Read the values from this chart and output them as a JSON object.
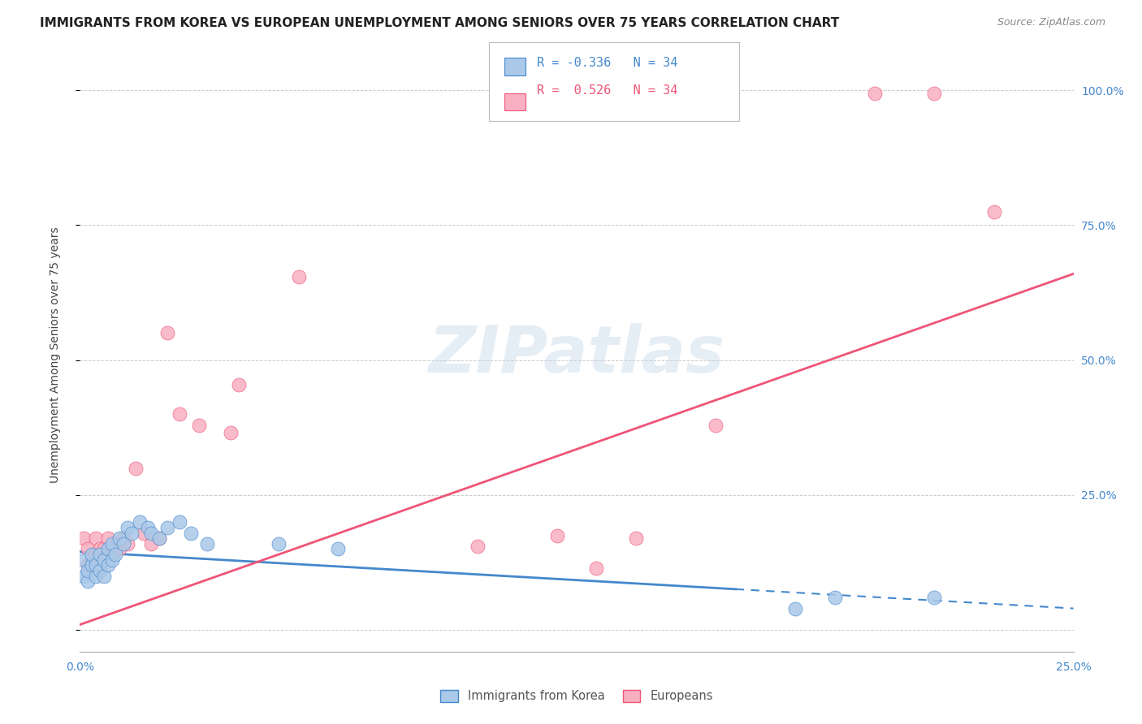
{
  "title": "IMMIGRANTS FROM KOREA VS EUROPEAN UNEMPLOYMENT AMONG SENIORS OVER 75 YEARS CORRELATION CHART",
  "source": "Source: ZipAtlas.com",
  "ylabel": "Unemployment Among Seniors over 75 years",
  "legend_label1": "Immigrants from Korea",
  "legend_label2": "Europeans",
  "R_korea": -0.336,
  "N_korea": 34,
  "R_europe": 0.526,
  "N_europe": 34,
  "color_korea": "#aac8e8",
  "color_europe": "#f8b0c0",
  "color_korea_line": "#4488cc",
  "color_europe_line": "#ee5577",
  "watermark_text": "ZIPatlas",
  "korea_x": [
    0.001,
    0.001,
    0.002,
    0.002,
    0.003,
    0.003,
    0.004,
    0.004,
    0.005,
    0.005,
    0.006,
    0.006,
    0.007,
    0.007,
    0.008,
    0.008,
    0.009,
    0.01,
    0.011,
    0.012,
    0.013,
    0.015,
    0.017,
    0.018,
    0.02,
    0.022,
    0.025,
    0.028,
    0.032,
    0.05,
    0.065,
    0.18,
    0.19,
    0.215
  ],
  "korea_y": [
    0.1,
    0.13,
    0.09,
    0.11,
    0.12,
    0.14,
    0.1,
    0.12,
    0.11,
    0.14,
    0.1,
    0.13,
    0.12,
    0.15,
    0.13,
    0.16,
    0.14,
    0.17,
    0.16,
    0.19,
    0.18,
    0.2,
    0.19,
    0.18,
    0.17,
    0.19,
    0.2,
    0.18,
    0.16,
    0.16,
    0.15,
    0.04,
    0.06,
    0.06
  ],
  "europe_x": [
    0.001,
    0.002,
    0.002,
    0.003,
    0.004,
    0.004,
    0.005,
    0.005,
    0.006,
    0.007,
    0.007,
    0.008,
    0.009,
    0.01,
    0.011,
    0.012,
    0.014,
    0.016,
    0.018,
    0.02,
    0.022,
    0.025,
    0.03,
    0.038,
    0.04,
    0.055,
    0.1,
    0.12,
    0.13,
    0.14,
    0.16,
    0.2,
    0.215,
    0.23
  ],
  "europe_y": [
    0.17,
    0.12,
    0.15,
    0.13,
    0.14,
    0.17,
    0.11,
    0.15,
    0.15,
    0.14,
    0.17,
    0.14,
    0.16,
    0.15,
    0.17,
    0.16,
    0.3,
    0.18,
    0.16,
    0.17,
    0.55,
    0.4,
    0.38,
    0.365,
    0.455,
    0.655,
    0.155,
    0.175,
    0.115,
    0.17,
    0.38,
    0.995,
    0.995,
    0.775
  ],
  "korea_line_x": [
    0.0,
    0.25
  ],
  "korea_line_y": [
    0.145,
    0.04
  ],
  "europe_line_x": [
    0.0,
    0.25
  ],
  "europe_line_y": [
    0.01,
    0.66
  ],
  "xmin": 0.0,
  "xmax": 0.25,
  "ymin": -0.04,
  "ymax": 1.06,
  "xticks": [
    0.0,
    0.025,
    0.05,
    0.075,
    0.1,
    0.125,
    0.15,
    0.175,
    0.2,
    0.225,
    0.25
  ],
  "yticks": [
    0.0,
    0.25,
    0.5,
    0.75,
    1.0
  ],
  "ytick_labels_right": [
    "",
    "25.0%",
    "50.0%",
    "75.0%",
    "100.0%"
  ],
  "grid_color": "#cccccc",
  "spine_color": "#aaaaaa",
  "tick_color": "#4488cc",
  "title_fontsize": 11,
  "source_fontsize": 9,
  "axis_label_fontsize": 10,
  "tick_fontsize": 10
}
